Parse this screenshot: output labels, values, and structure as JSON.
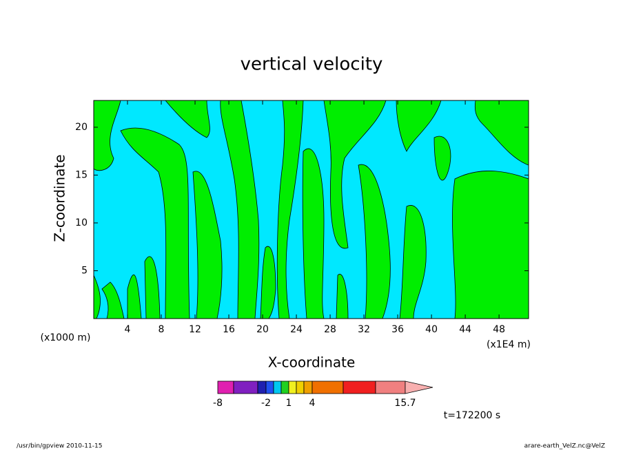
{
  "chart_data": {
    "type": "contour",
    "title": "vertical velocity",
    "x_label": "X-coordinate",
    "y_label": "Z-coordinate",
    "x_unit": "(x1E4 m)",
    "y_unit": "(x1000 m)",
    "xlim": [
      0,
      51.5
    ],
    "xticks": [
      4,
      8,
      12,
      16,
      20,
      24,
      28,
      32,
      36,
      40,
      44,
      48
    ],
    "ylim": [
      0,
      22.8
    ],
    "yticks": [
      5,
      10,
      15,
      20
    ],
    "colorbar": {
      "colors": [
        "#e020b0",
        "#8020c0",
        "#2020b0",
        "#2050f0",
        "#00c8f0",
        "#20d020",
        "#f0f020",
        "#f0d000",
        "#f0a000",
        "#f07000",
        "#f02020",
        "#f08080"
      ],
      "extend_color": "#f8b0b0",
      "ticks": [
        -8,
        -2,
        1,
        4,
        15.7
      ]
    },
    "time_label": "t=172200 s",
    "footer_left": "/usr/bin/gpview  2010-11-15",
    "footer_right": "arare-earth_VelZ.nc@VelZ"
  }
}
